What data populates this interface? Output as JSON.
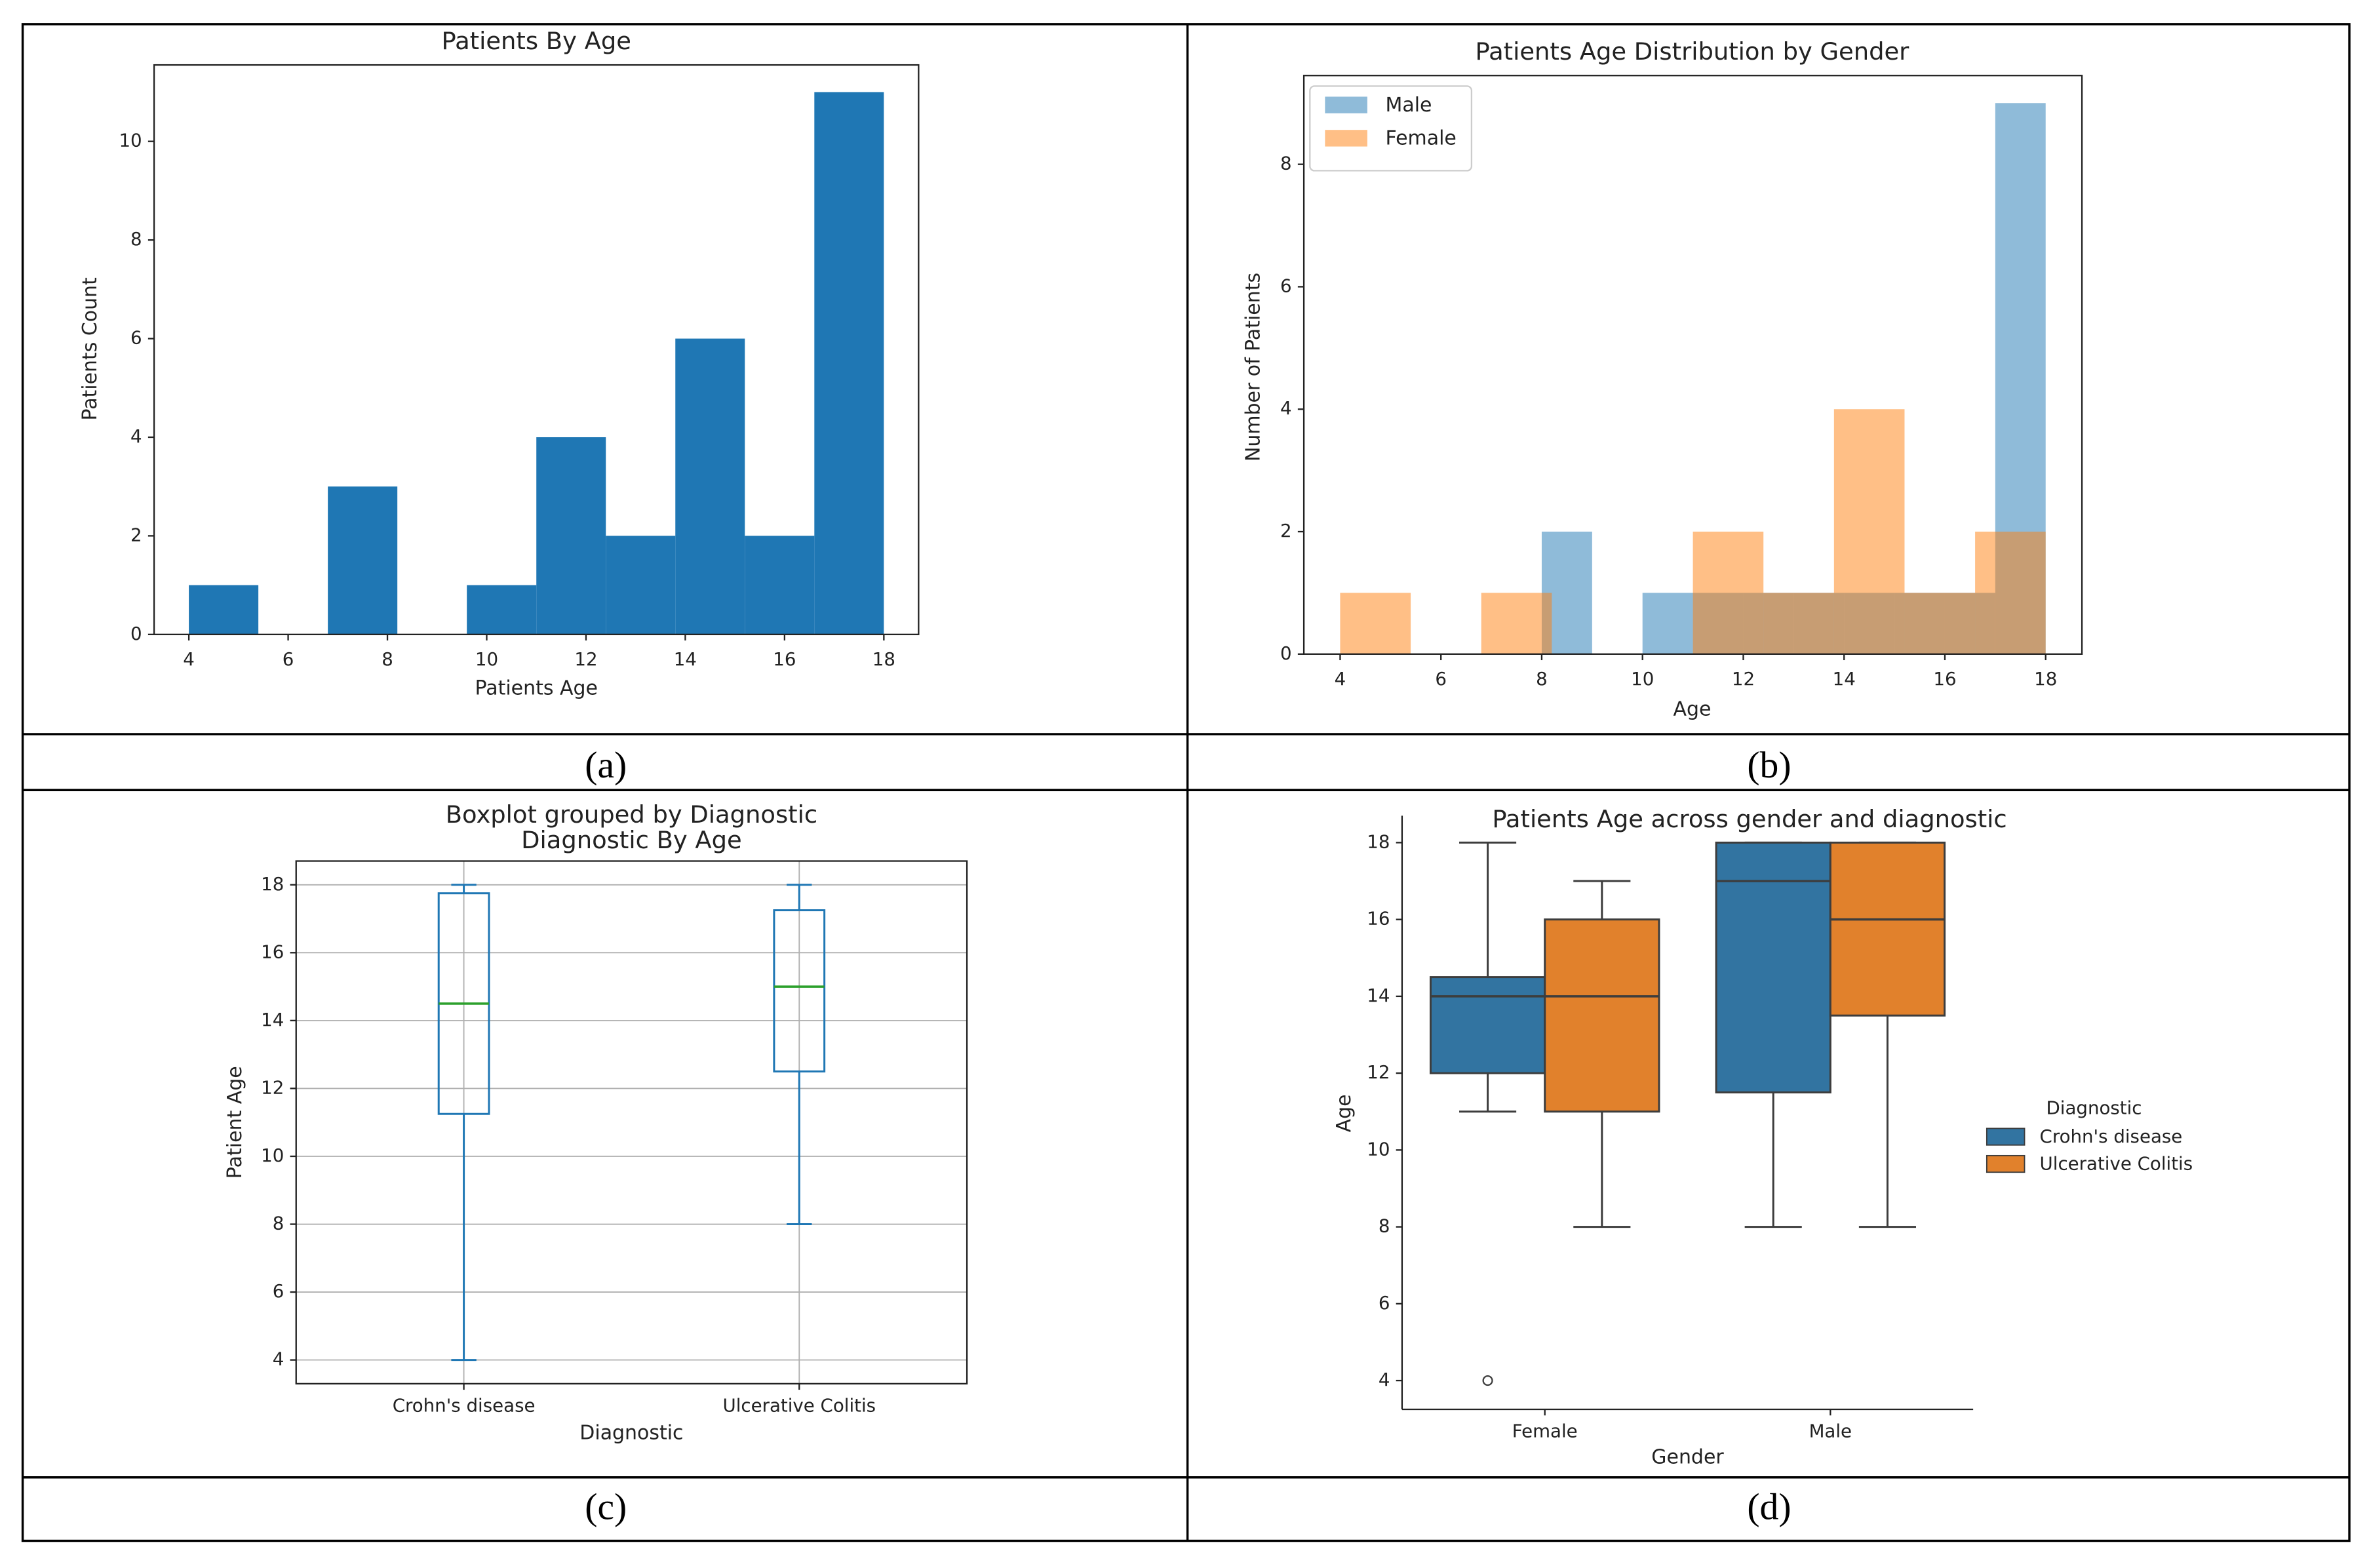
{
  "chart_data": [
    {
      "type": "histogram",
      "caption": "(a)",
      "title": "Patients By Age",
      "xlabel": "Patients Age",
      "ylabel": "Patients Count",
      "bins": [
        4,
        5.4,
        6.8,
        8.2,
        9.6,
        11,
        12.4,
        13.8,
        15.2,
        16.6,
        18
      ],
      "values": [
        1,
        0,
        3,
        0,
        1,
        4,
        2,
        6,
        2,
        11
      ],
      "color": "#1f77b4",
      "xlim": [
        3.3,
        18.7
      ],
      "ylim": [
        0,
        11.55
      ],
      "xticks": [
        4,
        6,
        8,
        10,
        12,
        14,
        16,
        18
      ],
      "yticks": [
        0,
        2,
        4,
        6,
        8,
        10
      ]
    },
    {
      "type": "histogram",
      "caption": "(b)",
      "title": "Patients Age Distribution by Gender",
      "xlabel": "Age",
      "ylabel": "Number of Patients",
      "series": [
        {
          "name": "Male",
          "color": "#1f77b4",
          "bins": [
            8,
            9,
            10,
            11,
            12,
            13,
            14,
            15,
            16,
            17,
            18
          ],
          "values": [
            2,
            0,
            1,
            1,
            1,
            1,
            1,
            1,
            1,
            9
          ]
        },
        {
          "name": "Female",
          "color": "#ff7f0e",
          "bins": [
            4,
            5.4,
            6.8,
            8.2,
            9.6,
            11,
            12.4,
            13.8,
            15.2,
            16.6,
            18
          ],
          "values": [
            1,
            0,
            1,
            0,
            0,
            2,
            1,
            4,
            1,
            2
          ]
        }
      ],
      "alpha": 0.5,
      "legend": "upper left",
      "xlim": [
        3.28,
        18.72
      ],
      "ylim": [
        0,
        9.45
      ],
      "xticks": [
        4,
        6,
        8,
        10,
        12,
        14,
        16,
        18
      ],
      "yticks": [
        0,
        2,
        4,
        6,
        8
      ]
    },
    {
      "type": "box",
      "caption": "(c)",
      "suptitle": "Boxplot grouped by Diagnostic",
      "title": "Diagnostic By Age",
      "xlabel": "Diagnostic",
      "ylabel": "Patient Age",
      "categories": [
        "Crohn's disease",
        "Ulcerative Colitis"
      ],
      "stats": [
        {
          "whisker_low": 4,
          "q1": 11.25,
          "median": 14.5,
          "q3": 17.75,
          "whisker_high": 18,
          "outliers": []
        },
        {
          "whisker_low": 8,
          "q1": 12.5,
          "median": 15,
          "q3": 17.25,
          "whisker_high": 18,
          "outliers": []
        }
      ],
      "color": "#1f77b4",
      "median_color": "#2ca02c",
      "grid": true,
      "ylim": [
        3.3,
        18.7
      ],
      "yticks": [
        4,
        6,
        8,
        10,
        12,
        14,
        16,
        18
      ]
    },
    {
      "type": "grouped_box",
      "caption": "(d)",
      "title": "Patients Age across gender and diagnostic",
      "xlabel": "Gender",
      "ylabel": "Age",
      "categories": [
        "Female",
        "Male"
      ],
      "legend_title": "Diagnostic",
      "legend": "outside right",
      "series": [
        {
          "name": "Crohn's disease",
          "color": "#3274a1",
          "stats": [
            {
              "whisker_low": 11,
              "q1": 12,
              "median": 14,
              "q3": 14.5,
              "whisker_high": 18,
              "outliers": [
                4
              ]
            },
            {
              "whisker_low": 8,
              "q1": 11.5,
              "median": 17,
              "q3": 18,
              "whisker_high": 18,
              "outliers": []
            }
          ]
        },
        {
          "name": "Ulcerative Colitis",
          "color": "#e1812c",
          "stats": [
            {
              "whisker_low": 8,
              "q1": 11,
              "median": 14,
              "q3": 16,
              "whisker_high": 17,
              "outliers": []
            },
            {
              "whisker_low": 8,
              "q1": 13.5,
              "median": 16,
              "q3": 18,
              "whisker_high": 18,
              "outliers": []
            }
          ]
        }
      ],
      "ylim": [
        3.25,
        18.7
      ],
      "yticks": [
        4,
        6,
        8,
        10,
        12,
        14,
        16,
        18
      ]
    }
  ]
}
